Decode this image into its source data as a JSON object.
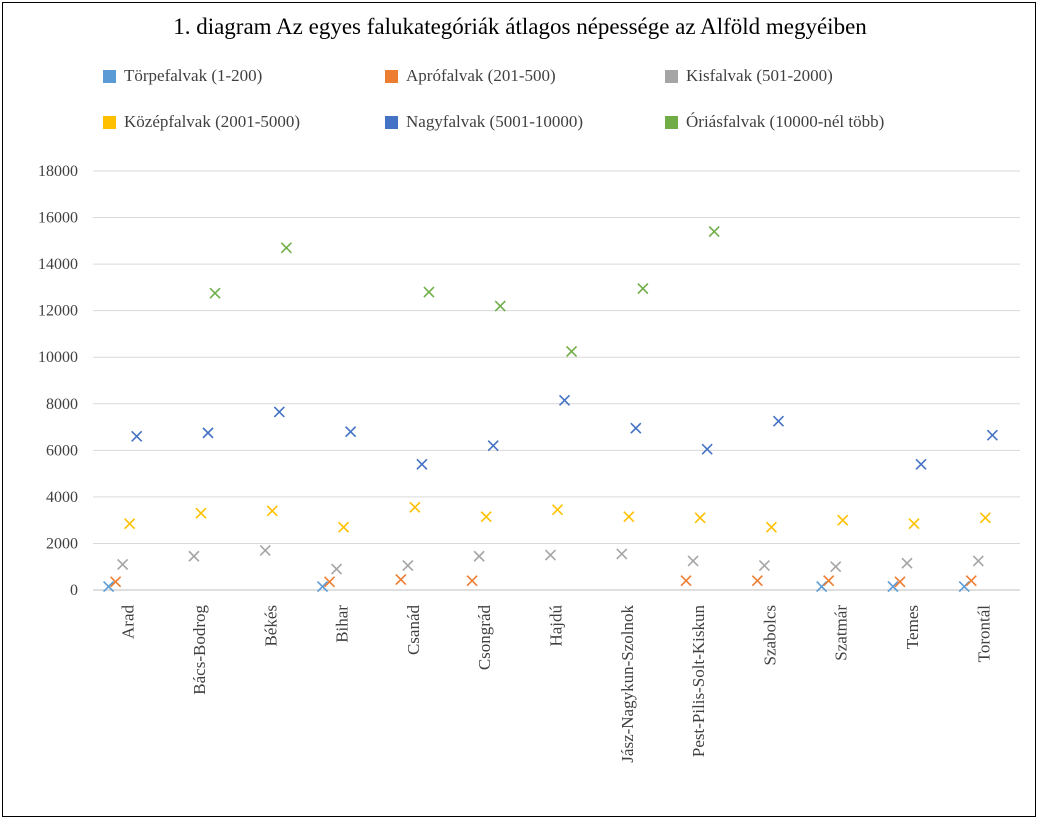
{
  "chart_data": {
    "type": "scatter",
    "title": "1. diagram Az egyes falukategóriák átlagos népessége az Alföld megyéiben",
    "categories": [
      "Arad",
      "Bács-Bodrog",
      "Békés",
      "Bihar",
      "Csanád",
      "Csongrád",
      "Hajdú",
      "Jász-Nagykun-Szolnok",
      "Pest-Pilis-Solt-Kiskun",
      "Szabolcs",
      "Szatmár",
      "Temes",
      "Torontál"
    ],
    "ylim": [
      0,
      18000
    ],
    "yticks": [
      "0",
      "2000",
      "4000",
      "6000",
      "8000",
      "10000",
      "12000",
      "14000",
      "16000",
      "18000"
    ],
    "grid": true,
    "legend_position": "top",
    "series": [
      {
        "name": "Törpefalvak (1-200)",
        "color": "#5b9bd5",
        "values": [
          150,
          null,
          null,
          150,
          null,
          null,
          null,
          null,
          null,
          null,
          150,
          150,
          150
        ]
      },
      {
        "name": "Aprófalvak (201-500)",
        "color": "#ed7d31",
        "values": [
          350,
          null,
          null,
          350,
          450,
          400,
          null,
          null,
          400,
          400,
          400,
          350,
          400
        ]
      },
      {
        "name": "Kisfalvak (501-2000)",
        "color": "#a5a5a5",
        "values": [
          1100,
          1450,
          1700,
          900,
          1050,
          1450,
          1500,
          1550,
          1250,
          1050,
          1000,
          1150,
          1250
        ]
      },
      {
        "name": "Középfalvak (2001-5000)",
        "color": "#ffc000",
        "values": [
          2850,
          3300,
          3400,
          2700,
          3550,
          3150,
          3450,
          3150,
          3100,
          2700,
          3000,
          2850,
          3100
        ]
      },
      {
        "name": "Nagyfalvak (5001-10000)",
        "color": "#4472c4",
        "values": [
          6600,
          6750,
          7650,
          6800,
          5400,
          6200,
          8150,
          6950,
          6050,
          7250,
          null,
          5400,
          6650
        ]
      },
      {
        "name": "Óriásfalvak (10000-nél több)",
        "color": "#70ad47",
        "values": [
          null,
          12750,
          14700,
          null,
          12800,
          12200,
          10250,
          12950,
          15400,
          null,
          null,
          null,
          null
        ]
      }
    ]
  }
}
